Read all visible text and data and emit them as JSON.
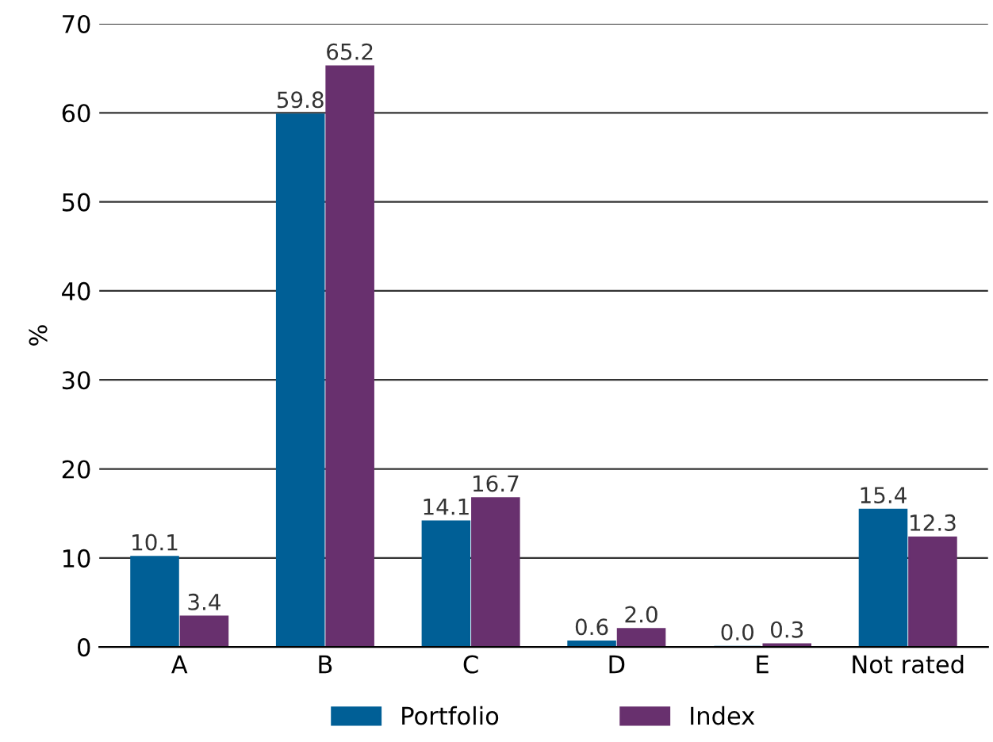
{
  "chart_data": {
    "type": "bar",
    "ylabel": "%",
    "categories": [
      "A",
      "B",
      "C",
      "D",
      "E",
      "Not rated"
    ],
    "series": [
      {
        "name": "Portfolio",
        "color": "#005f96",
        "values": [
          10.1,
          59.8,
          14.1,
          0.6,
          0.0,
          15.4
        ],
        "value_labels": [
          "10.1",
          "59.8",
          "14.1",
          "0.6",
          "0.0",
          "15.4"
        ]
      },
      {
        "name": "Index",
        "color": "#68306e",
        "values": [
          3.4,
          65.2,
          16.7,
          2.0,
          0.3,
          12.3
        ],
        "value_labels": [
          "3.4",
          "65.2",
          "16.7",
          "2.0",
          "0.3",
          "12.3"
        ]
      }
    ],
    "ylim": [
      0,
      70
    ],
    "yticks": [
      0,
      10,
      20,
      30,
      40,
      50,
      60,
      70
    ],
    "grid": "y",
    "legend": "bottom"
  }
}
